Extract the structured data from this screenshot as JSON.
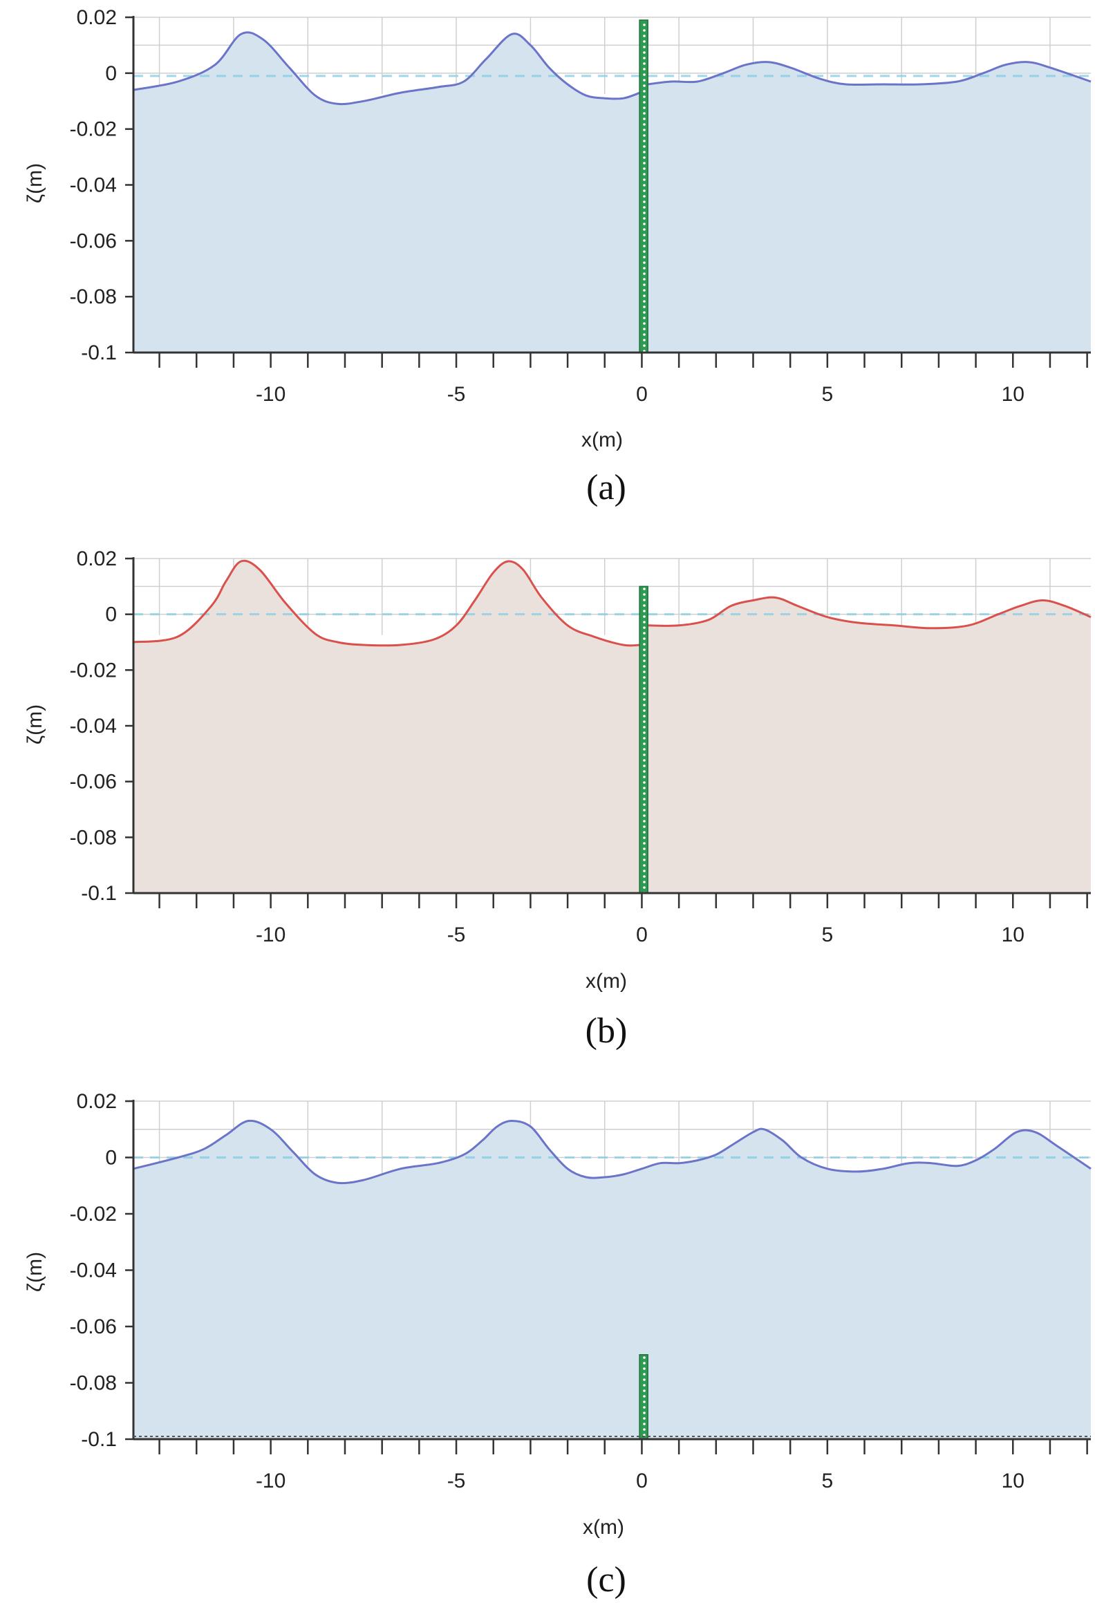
{
  "figure": {
    "panel_order": [
      "a",
      "b",
      "c"
    ]
  },
  "chart_data": [
    {
      "type": "area",
      "caption": "(a)",
      "xlabel": "x(m)",
      "ylabel": "ζ(m)",
      "xlim": [
        -13.7,
        12.1
      ],
      "ylim": [
        -0.1,
        0.02
      ],
      "xticks": [
        -10,
        -5,
        0,
        5,
        10
      ],
      "xtick_labels": [
        "-10",
        "-5",
        "0",
        "5",
        "10"
      ],
      "yticks": [
        0.02,
        0,
        -0.02,
        -0.04,
        -0.06,
        -0.08,
        -0.1
      ],
      "ytick_labels": [
        "0.02",
        "0",
        "-0.02",
        "-0.04",
        "-0.06",
        "-0.08",
        "-0.1"
      ],
      "grid": true,
      "still_water_level": -0.001,
      "colors": {
        "line": "#6a74c8",
        "fill": "#d5e3ee",
        "reference": "#87cfe6",
        "barrier": "#2e9a52"
      },
      "barrier": {
        "x": 0.05,
        "bottom": -0.1,
        "top": 0.019
      },
      "series": [
        {
          "x": [
            -13.7,
            -12.5,
            -11.5,
            -10.8,
            -10.2,
            -9.5,
            -8.8,
            -8.2,
            -7.5,
            -6.5,
            -5.5,
            -4.8,
            -4.2,
            -3.5,
            -3.0,
            -2.5,
            -2.0,
            -1.5,
            -1.0,
            -0.5,
            -0.05
          ],
          "y": [
            -0.006,
            -0.003,
            0.003,
            0.014,
            0.012,
            0.002,
            -0.008,
            -0.011,
            -0.01,
            -0.007,
            -0.005,
            -0.003,
            0.005,
            0.014,
            0.01,
            0.002,
            -0.004,
            -0.008,
            -0.009,
            -0.009,
            -0.007
          ]
        },
        {
          "x": [
            0.15,
            0.8,
            1.5,
            2.2,
            2.8,
            3.4,
            4.0,
            4.8,
            5.5,
            6.5,
            7.5,
            8.5,
            9.2,
            9.8,
            10.4,
            11.0,
            12.1
          ],
          "y": [
            -0.004,
            -0.003,
            -0.003,
            0.0,
            0.003,
            0.004,
            0.002,
            -0.002,
            -0.004,
            -0.004,
            -0.004,
            -0.003,
            0.0,
            0.003,
            0.004,
            0.002,
            -0.003
          ]
        }
      ]
    },
    {
      "type": "area",
      "caption": "(b)",
      "xlabel": "x(m)",
      "ylabel": "ζ(m)",
      "xlim": [
        -13.7,
        12.1
      ],
      "ylim": [
        -0.1,
        0.02
      ],
      "xticks": [
        -10,
        -5,
        0,
        5,
        10
      ],
      "xtick_labels": [
        "-10",
        "-5",
        "0",
        "5",
        "10"
      ],
      "yticks": [
        0.02,
        0,
        -0.02,
        -0.04,
        -0.06,
        -0.08,
        -0.1
      ],
      "ytick_labels": [
        "0.02",
        "0",
        "-0.02",
        "-0.04",
        "-0.06",
        "-0.08",
        "-0.1"
      ],
      "grid": true,
      "still_water_level": 0,
      "colors": {
        "line": "#d9504c",
        "fill": "#eae1dc",
        "reference": "#87cfe6",
        "barrier": "#2e9a52"
      },
      "barrier": {
        "x": 0.05,
        "bottom": -0.1,
        "top": 0.01
      },
      "series": [
        {
          "x": [
            -13.7,
            -12.5,
            -11.6,
            -11.2,
            -10.8,
            -10.3,
            -9.6,
            -8.8,
            -8.2,
            -7.5,
            -6.5,
            -5.6,
            -5.0,
            -4.5,
            -4.0,
            -3.6,
            -3.2,
            -2.7,
            -2.0,
            -1.3,
            -0.5,
            -0.05
          ],
          "y": [
            -0.01,
            -0.008,
            0.003,
            0.012,
            0.019,
            0.016,
            0.004,
            -0.007,
            -0.01,
            -0.011,
            -0.011,
            -0.009,
            -0.004,
            0.005,
            0.015,
            0.019,
            0.016,
            0.006,
            -0.004,
            -0.008,
            -0.011,
            -0.011
          ]
        },
        {
          "x": [
            0.15,
            1.0,
            1.8,
            2.4,
            3.0,
            3.6,
            4.2,
            5.0,
            5.8,
            6.8,
            7.8,
            8.8,
            9.6,
            10.2,
            10.8,
            11.4,
            12.1
          ],
          "y": [
            -0.004,
            -0.004,
            -0.002,
            0.003,
            0.005,
            0.006,
            0.003,
            -0.001,
            -0.003,
            -0.004,
            -0.005,
            -0.004,
            0.0,
            0.003,
            0.005,
            0.003,
            -0.001
          ]
        }
      ]
    },
    {
      "type": "area",
      "caption": "(c)",
      "xlabel": "x(m)",
      "ylabel": "ζ(m)",
      "xlim": [
        -13.7,
        12.1
      ],
      "ylim": [
        -0.1,
        0.02
      ],
      "xticks": [
        -10,
        -5,
        0,
        5,
        10
      ],
      "xtick_labels": [
        "-10",
        "-5",
        "0",
        "5",
        "10"
      ],
      "yticks": [
        0.02,
        0,
        -0.02,
        -0.04,
        -0.06,
        -0.08,
        -0.1
      ],
      "ytick_labels": [
        "0.02",
        "0",
        "-0.02",
        "-0.04",
        "-0.06",
        "-0.08",
        "-0.1"
      ],
      "grid": true,
      "still_water_level": 0,
      "colors": {
        "line": "#6a74c8",
        "fill": "#d5e3ee",
        "reference": "#87cfe6",
        "barrier": "#2e9a52"
      },
      "barrier": {
        "x": 0.05,
        "bottom": -0.1,
        "top": -0.07
      },
      "series": [
        {
          "x": [
            -13.7,
            -12.5,
            -11.8,
            -11.2,
            -10.6,
            -10.0,
            -9.4,
            -8.8,
            -8.2,
            -7.5,
            -6.5,
            -5.5,
            -4.8,
            -4.3,
            -3.9,
            -3.5,
            -3.0,
            -2.5,
            -2.0,
            -1.5,
            -1.0,
            -0.5,
            0.0,
            0.5,
            1.0,
            1.5,
            2.0,
            2.5,
            3.0,
            3.3,
            3.8,
            4.3,
            5.0,
            5.8,
            6.5,
            7.2,
            7.8,
            8.5,
            9.0,
            9.5,
            10.1,
            10.6,
            11.2,
            12.1
          ],
          "y": [
            -0.004,
            0.0,
            0.003,
            0.008,
            0.013,
            0.01,
            0.002,
            -0.006,
            -0.009,
            -0.008,
            -0.004,
            -0.002,
            0.001,
            0.006,
            0.011,
            0.013,
            0.011,
            0.003,
            -0.004,
            -0.007,
            -0.007,
            -0.006,
            -0.004,
            -0.002,
            -0.002,
            -0.001,
            0.001,
            0.005,
            0.009,
            0.01,
            0.006,
            0.0,
            -0.004,
            -0.005,
            -0.004,
            -0.002,
            -0.002,
            -0.003,
            -0.001,
            0.003,
            0.009,
            0.009,
            0.004,
            -0.004
          ]
        }
      ]
    }
  ]
}
